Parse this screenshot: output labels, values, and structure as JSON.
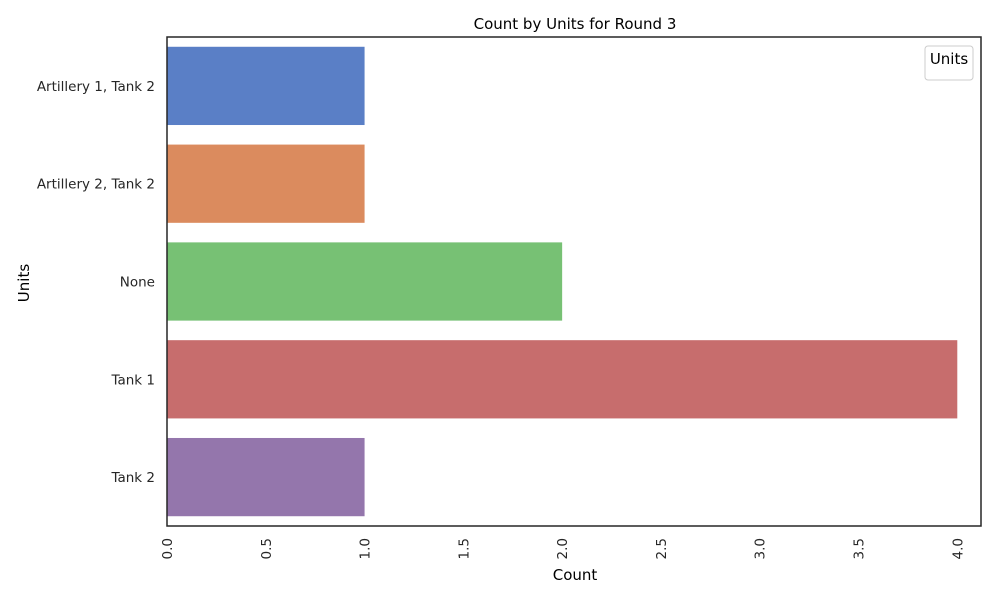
{
  "chart_data": {
    "type": "bar",
    "orientation": "horizontal",
    "title": "Count by Units for Round 3",
    "xlabel": "Count",
    "ylabel": "Units",
    "categories": [
      "Artillery 1, Tank 2",
      "Artillery 2, Tank 2",
      "None",
      "Tank 1",
      "Tank 2"
    ],
    "values": [
      1,
      1,
      2,
      4,
      1
    ],
    "xlim": [
      0,
      4.12
    ],
    "xticks": [
      "0.0",
      "0.5",
      "1.0",
      "1.5",
      "2.0",
      "2.5",
      "3.0",
      "3.5",
      "4.0"
    ],
    "xtick_rotation": 90,
    "grid": false,
    "legend": {
      "title": "Units",
      "location": "upper right",
      "entries": []
    },
    "colors": [
      "#5a7fc6",
      "#db8b5e",
      "#77c174",
      "#c76d6d",
      "#9476ac"
    ]
  }
}
